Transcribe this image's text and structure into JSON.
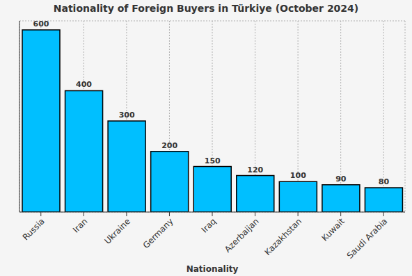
{
  "chart_data": {
    "type": "bar",
    "title": "Nationality of Foreign Buyers in Türkiye (October 2024)",
    "x_label": "Nationality",
    "categories": [
      "Russia",
      "Iran",
      "Ukraine",
      "Germany",
      "Iraq",
      "Azerbaijan",
      "Kazakhstan",
      "Kuwait",
      "Saudi Arabia"
    ],
    "values": [
      600,
      400,
      300,
      200,
      150,
      120,
      100,
      90,
      80
    ],
    "color": "#00bfff",
    "ylim": [
      0,
      630
    ],
    "yticks": [
      0,
      100,
      200,
      300,
      400,
      500,
      600
    ],
    "grid": true,
    "data_labels": true,
    "tick_labels": "x"
  }
}
